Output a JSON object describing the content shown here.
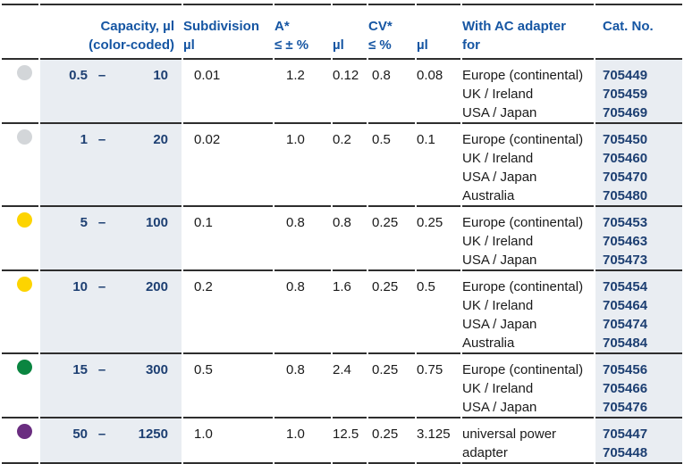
{
  "colors": {
    "header_text": "#1656a3",
    "navy_text": "#1d3f72",
    "body_text": "#1a1a1a",
    "band_bg": "#e9edf2",
    "rule_line": "#2e2e2e",
    "dot_gray": "#d3d6d9",
    "dot_yellow": "#fdd400",
    "dot_green": "#0a8540",
    "dot_purple": "#6a2d80"
  },
  "table": {
    "header": {
      "capacity_l1": "Capacity, µl",
      "capacity_l2": "(color-coded)",
      "subdivision_l1": "Subdivision",
      "subdivision_l2": "µl",
      "a_l1": "A*",
      "a_l2": "≤ ± %",
      "a_ul_l1": "",
      "a_ul_l2": "µl",
      "cv_l1": "CV*",
      "cv_l2": "≤ %",
      "cv_ul_l1": "",
      "cv_ul_l2": "µl",
      "adapter_l1": "With AC adapter",
      "adapter_l2": "for",
      "cat_l1": "Cat. No.",
      "cat_l2": ""
    },
    "rows": [
      {
        "dot_color": "#d3d6d9",
        "dot_name": "gray-dot",
        "cap_min": "0.5",
        "dash": "–",
        "cap_max": "10",
        "subdivision": "0.01",
        "a_pct": "1.2",
        "a_ul": "0.12",
        "cv_pct": "0.8",
        "cv_ul": "0.08",
        "adapters": [
          "Europe (continental)",
          "UK / Ireland",
          "USA / Japan"
        ],
        "cat_nos": [
          "705449",
          "705459",
          "705469"
        ]
      },
      {
        "dot_color": "#d3d6d9",
        "dot_name": "gray-dot",
        "cap_min": "1",
        "dash": "–",
        "cap_max": "20",
        "subdivision": "0.02",
        "a_pct": "1.0",
        "a_ul": "0.2",
        "cv_pct": "0.5",
        "cv_ul": "0.1",
        "adapters": [
          "Europe (continental)",
          "UK / Ireland",
          "USA / Japan",
          "Australia"
        ],
        "cat_nos": [
          "705450",
          "705460",
          "705470",
          "705480"
        ]
      },
      {
        "dot_color": "#fdd400",
        "dot_name": "yellow-dot",
        "cap_min": "5",
        "dash": "–",
        "cap_max": "100",
        "subdivision": "0.1",
        "a_pct": "0.8",
        "a_ul": "0.8",
        "cv_pct": "0.25",
        "cv_ul": "0.25",
        "adapters": [
          "Europe (continental)",
          "UK / Ireland",
          "USA / Japan"
        ],
        "cat_nos": [
          "705453",
          "705463",
          "705473"
        ]
      },
      {
        "dot_color": "#fdd400",
        "dot_name": "yellow-dot",
        "cap_min": "10",
        "dash": "–",
        "cap_max": "200",
        "subdivision": "0.2",
        "a_pct": "0.8",
        "a_ul": "1.6",
        "cv_pct": "0.25",
        "cv_ul": "0.5",
        "adapters": [
          "Europe (continental)",
          "UK / Ireland",
          "USA / Japan",
          "Australia"
        ],
        "cat_nos": [
          "705454",
          "705464",
          "705474",
          "705484"
        ]
      },
      {
        "dot_color": "#0a8540",
        "dot_name": "green-dot",
        "cap_min": "15",
        "dash": "–",
        "cap_max": "300",
        "subdivision": "0.5",
        "a_pct": "0.8",
        "a_ul": "2.4",
        "cv_pct": "0.25",
        "cv_ul": "0.75",
        "adapters": [
          "Europe (continental)",
          "UK / Ireland",
          "USA / Japan"
        ],
        "cat_nos": [
          "705456",
          "705466",
          "705476"
        ]
      },
      {
        "dot_color": "#6a2d80",
        "dot_name": "purple-dot",
        "cap_min": "50",
        "dash": "–",
        "cap_max": "1250",
        "subdivision": "1.0",
        "a_pct": "1.0",
        "a_ul": "12.5",
        "cv_pct": "0.25",
        "cv_ul": "3.125",
        "adapters": [
          "universal power adapter"
        ],
        "cat_nos": [
          "705447",
          "705448"
        ]
      }
    ]
  }
}
